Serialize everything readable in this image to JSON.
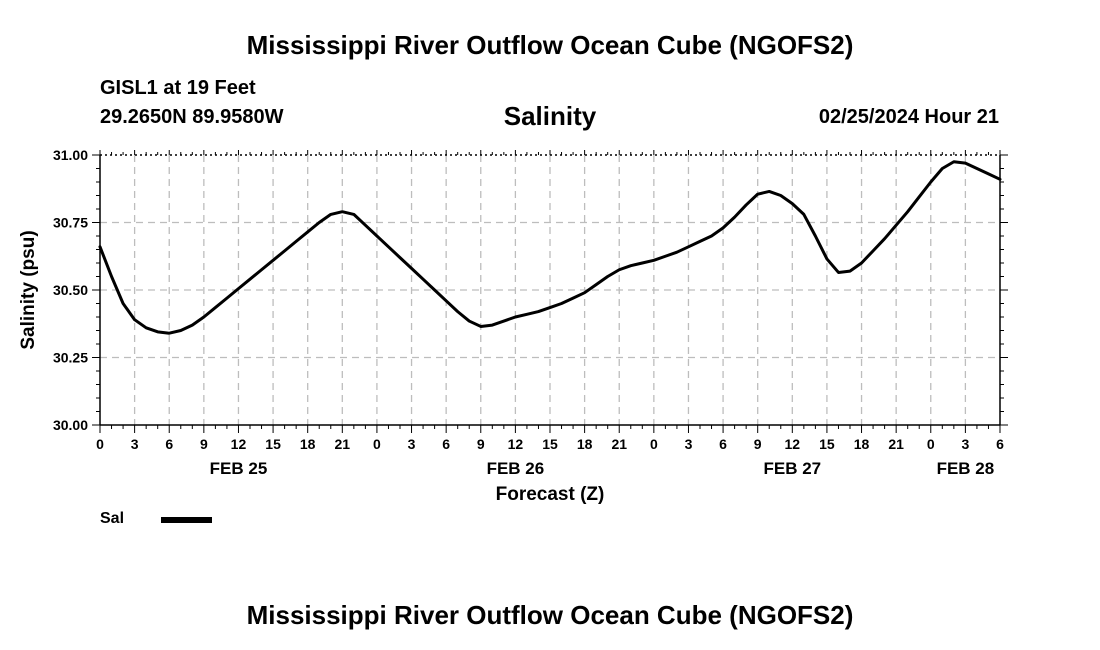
{
  "header": {
    "title": "Mississippi River Outflow Ocean Cube (NGOFS2)",
    "station": "GISL1 at 19 Feet",
    "coordinates": "29.2650N  89.9580W",
    "subtitle": "Salinity",
    "datetime": "02/25/2024 Hour 21"
  },
  "footer": {
    "title": "Mississippi River Outflow Ocean Cube (NGOFS2)"
  },
  "legend": {
    "label": "Sal",
    "color": "#000000"
  },
  "chart_data": {
    "type": "line",
    "title": "Salinity",
    "xlabel": "Forecast (Z)",
    "ylabel": "Salinity (psu)",
    "x_unit": "hours from FEB 25 00Z",
    "xlim": [
      0,
      78
    ],
    "ylim": [
      30.0,
      31.0
    ],
    "yticks": [
      "30.00",
      "30.25",
      "30.50",
      "30.75",
      "31.00"
    ],
    "xticks": [
      {
        "hour": 0,
        "label": "0"
      },
      {
        "hour": 3,
        "label": "3"
      },
      {
        "hour": 6,
        "label": "6"
      },
      {
        "hour": 9,
        "label": "9"
      },
      {
        "hour": 12,
        "label": "12"
      },
      {
        "hour": 15,
        "label": "15"
      },
      {
        "hour": 18,
        "label": "18"
      },
      {
        "hour": 21,
        "label": "21"
      },
      {
        "hour": 24,
        "label": "0"
      },
      {
        "hour": 27,
        "label": "3"
      },
      {
        "hour": 30,
        "label": "6"
      },
      {
        "hour": 33,
        "label": "9"
      },
      {
        "hour": 36,
        "label": "12"
      },
      {
        "hour": 39,
        "label": "15"
      },
      {
        "hour": 42,
        "label": "18"
      },
      {
        "hour": 45,
        "label": "21"
      },
      {
        "hour": 48,
        "label": "0"
      },
      {
        "hour": 51,
        "label": "3"
      },
      {
        "hour": 54,
        "label": "6"
      },
      {
        "hour": 57,
        "label": "9"
      },
      {
        "hour": 60,
        "label": "12"
      },
      {
        "hour": 63,
        "label": "15"
      },
      {
        "hour": 66,
        "label": "18"
      },
      {
        "hour": 69,
        "label": "21"
      },
      {
        "hour": 72,
        "label": "0"
      },
      {
        "hour": 75,
        "label": "3"
      },
      {
        "hour": 78,
        "label": "6"
      }
    ],
    "date_labels": [
      {
        "hour": 12,
        "label": "FEB 25"
      },
      {
        "hour": 36,
        "label": "FEB 26"
      },
      {
        "hour": 60,
        "label": "FEB 27"
      },
      {
        "hour": 75,
        "label": "FEB 28"
      }
    ],
    "grid": true,
    "series": [
      {
        "name": "Sal",
        "color": "#000000",
        "x": [
          0,
          1,
          2,
          3,
          4,
          5,
          6,
          7,
          8,
          9,
          10,
          11,
          12,
          13,
          14,
          15,
          16,
          17,
          18,
          19,
          20,
          21,
          22,
          23,
          24,
          25,
          26,
          27,
          28,
          29,
          30,
          31,
          32,
          33,
          34,
          35,
          36,
          37,
          38,
          39,
          40,
          41,
          42,
          43,
          44,
          45,
          46,
          47,
          48,
          49,
          50,
          51,
          52,
          53,
          54,
          55,
          56,
          57,
          58,
          59,
          60,
          61,
          62,
          63,
          64,
          65,
          66,
          67,
          68,
          69,
          70,
          71,
          72,
          73,
          74,
          75,
          76,
          77,
          78
        ],
        "y": [
          30.66,
          30.55,
          30.45,
          30.39,
          30.36,
          30.345,
          30.34,
          30.35,
          30.37,
          30.4,
          30.435,
          30.47,
          30.505,
          30.54,
          30.575,
          30.61,
          30.645,
          30.68,
          30.715,
          30.75,
          30.78,
          30.79,
          30.78,
          30.74,
          30.7,
          30.66,
          30.62,
          30.58,
          30.54,
          30.5,
          30.46,
          30.42,
          30.385,
          30.365,
          30.37,
          30.385,
          30.4,
          30.41,
          30.42,
          30.435,
          30.45,
          30.47,
          30.49,
          30.52,
          30.55,
          30.575,
          30.59,
          30.6,
          30.61,
          30.625,
          30.64,
          30.66,
          30.68,
          30.7,
          30.73,
          30.77,
          30.815,
          30.855,
          30.865,
          30.85,
          30.82,
          30.78,
          30.7,
          30.615,
          30.565,
          30.57,
          30.6,
          30.645,
          30.69,
          30.74,
          30.79,
          30.845,
          30.9,
          30.95,
          30.975,
          30.97,
          30.95,
          30.93,
          30.91
        ]
      }
    ]
  }
}
